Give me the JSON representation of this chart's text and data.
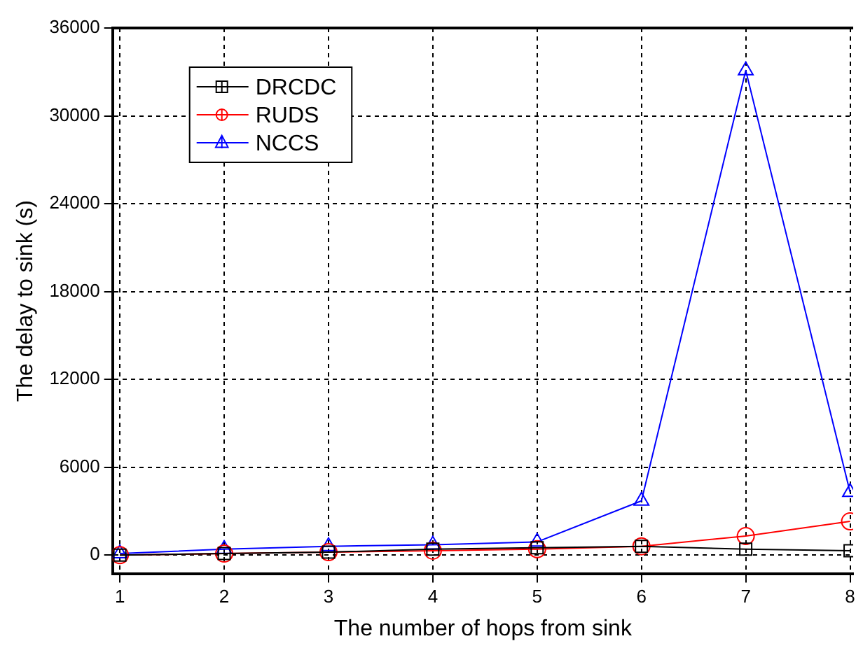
{
  "chart_data": {
    "type": "line",
    "xlabel": "The number of hops from sink",
    "ylabel": "The delay to sink (s)",
    "x": [
      1,
      2,
      3,
      4,
      5,
      6,
      7,
      8
    ],
    "xlim": [
      0.93,
      8.03
    ],
    "xticks": [
      1,
      2,
      3,
      4,
      5,
      6,
      7,
      8
    ],
    "ylim": [
      -1300,
      36000
    ],
    "yticks": [
      0,
      6000,
      12000,
      18000,
      24000,
      30000,
      36000
    ],
    "grid": true,
    "legend": "top left",
    "series": [
      {
        "name": "DRCDC",
        "color": "#000000",
        "marker": "square",
        "values": [
          0,
          100,
          200,
          400,
          500,
          600,
          400,
          300
        ]
      },
      {
        "name": "RUDS",
        "color": "#ff0000",
        "marker": "circle",
        "values": [
          0,
          100,
          200,
          300,
          400,
          600,
          1300,
          2300
        ]
      },
      {
        "name": "NCCS",
        "color": "#0000ff",
        "marker": "triangle",
        "values": [
          100,
          400,
          600,
          700,
          900,
          3700,
          33100,
          4300
        ]
      }
    ]
  }
}
